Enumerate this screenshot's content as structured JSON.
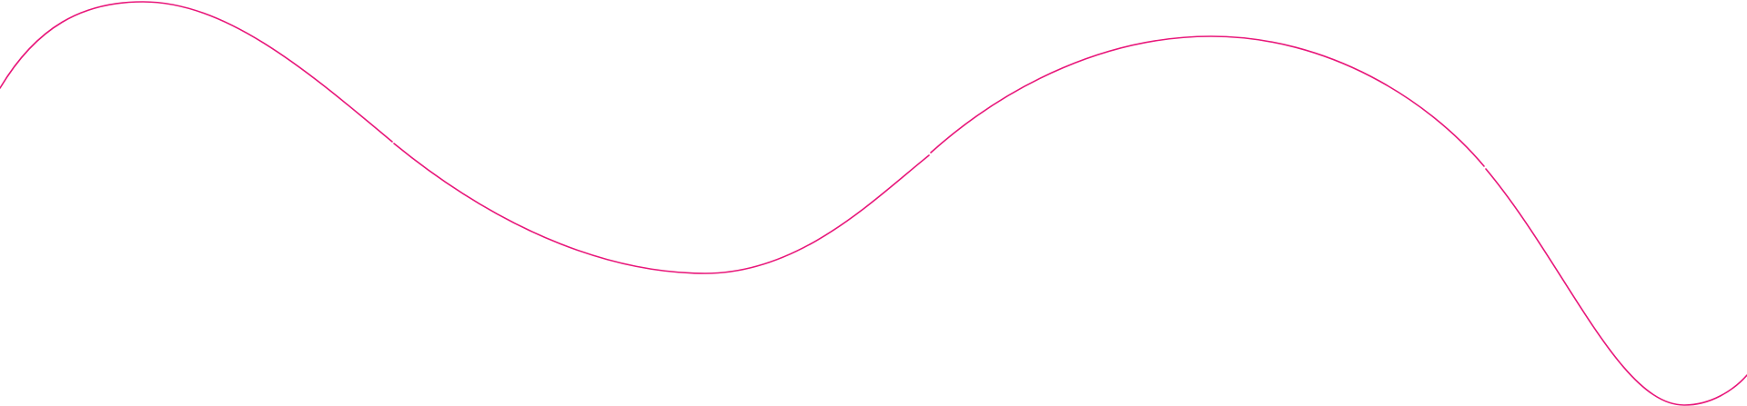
{
  "decoration": {
    "name": "wave-line",
    "stroke_color": "#e8177a"
  }
}
